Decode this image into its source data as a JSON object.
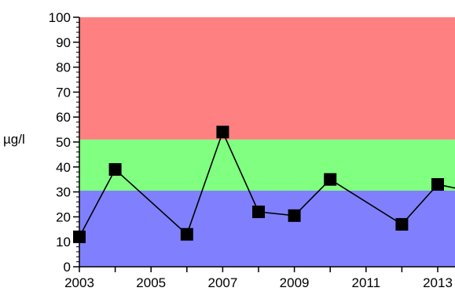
{
  "chart_data": {
    "type": "line",
    "title": "",
    "xlabel": "",
    "ylabel": "µg/l",
    "xlim": [
      2003,
      2014
    ],
    "ylim": [
      0,
      100
    ],
    "x_ticks": [
      2003,
      2005,
      2007,
      2009,
      2011,
      2013
    ],
    "y_ticks": [
      0,
      10,
      20,
      30,
      40,
      50,
      60,
      70,
      80,
      90,
      100
    ],
    "grid": false,
    "legend": "none",
    "bands": [
      {
        "from": 0,
        "to": 30.5,
        "color": "#8080ff"
      },
      {
        "from": 30.5,
        "to": 51,
        "color": "#80ff80"
      },
      {
        "from": 51,
        "to": 100,
        "color": "#ff8080"
      }
    ],
    "series": [
      {
        "color": "#000000",
        "marker": "square",
        "x": [
          2003,
          2004,
          2006,
          2007,
          2008,
          2009,
          2010,
          2012,
          2013,
          2014
        ],
        "y": [
          12,
          39,
          13,
          54,
          22,
          20.5,
          35,
          17,
          33,
          30
        ]
      }
    ]
  }
}
